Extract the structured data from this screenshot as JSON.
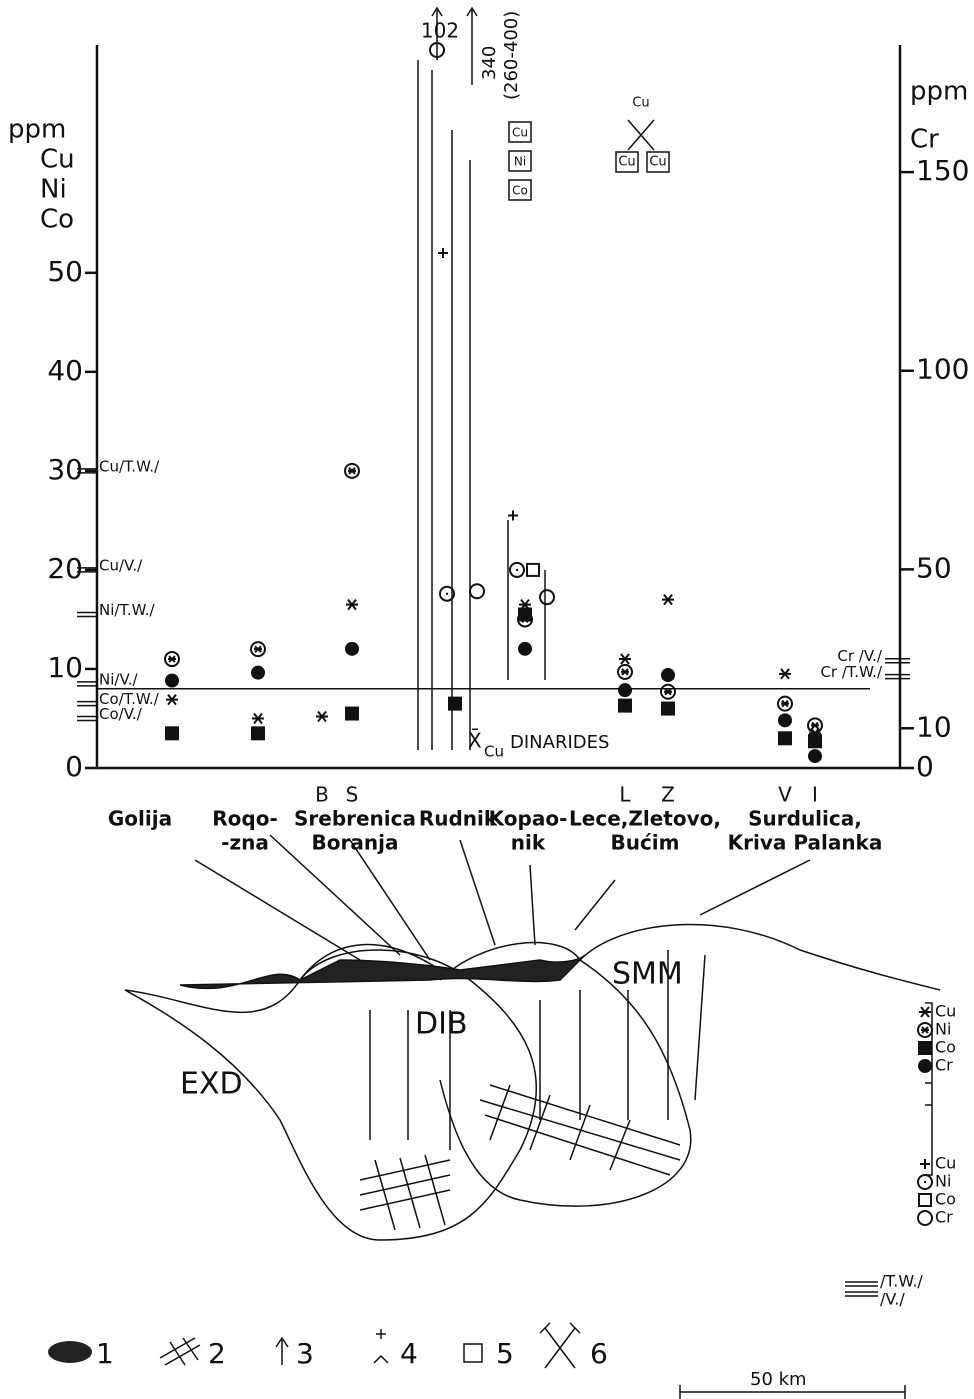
{
  "chart_data": {
    "type": "scatter",
    "y_axis_labels": [
      "ppm",
      "Cu",
      "Ni",
      "Co"
    ],
    "y2_axis_labels": [
      "ppm",
      "Cr"
    ],
    "categories": [
      null,
      null,
      "B",
      "S",
      null,
      null,
      "L",
      "Z",
      "V",
      "I"
    ],
    "localities": [
      [
        "Golija"
      ],
      [
        "Roqo-",
        "-zna"
      ],
      [
        "Srebrenica",
        "Boranja"
      ],
      [
        "Rudnik"
      ],
      [
        "Kopao-",
        "nik"
      ],
      [
        "Lece,Zletovo,",
        "Bućim"
      ],
      [
        "Surdulica,",
        "Kriva Palanka"
      ]
    ],
    "series": [
      {
        "name": "Cu",
        "marker": "asterisk",
        "color": "#111",
        "values": [
          6.9,
          5,
          5.2,
          16.5,
          null,
          16.5,
          11,
          17,
          9.5,
          3.5
        ]
      },
      {
        "name": "Ni",
        "marker": "circled-asterisk",
        "color": "#111",
        "values": [
          11,
          12,
          null,
          30,
          null,
          15,
          9.7,
          7.7,
          6.5,
          4.3
        ]
      },
      {
        "name": "Co",
        "marker": "filled-square",
        "color": "#111",
        "values": [
          3.5,
          3.5,
          null,
          5.5,
          6.5,
          15.5,
          6.3,
          6,
          3,
          2.7
        ]
      },
      {
        "name": "Cr",
        "marker": "filled-circle",
        "color": "#111",
        "axis": "y2",
        "values": [
          22,
          24,
          null,
          30,
          null,
          30,
          19.6,
          23.4,
          12,
          3
        ]
      },
      {
        "name": "Cu",
        "marker": "plus",
        "color": "#111",
        "values": [
          null,
          null,
          null,
          null,
          52,
          25.5,
          null,
          null,
          null,
          null
        ]
      },
      {
        "name": "Ni",
        "marker": "dotted-circle",
        "color": "#111",
        "values": [
          null,
          null,
          null,
          null,
          17.6,
          20,
          null,
          null,
          null,
          null
        ]
      },
      {
        "name": "Co",
        "marker": "open-square",
        "color": "#111",
        "values": [
          null,
          null,
          null,
          null,
          null,
          20,
          null,
          null,
          null,
          null
        ]
      },
      {
        "name": "Cr",
        "marker": "open-circle",
        "color": "#111",
        "axis": "y2",
        "values": [
          null,
          null,
          null,
          null,
          44.5,
          43,
          null,
          null,
          null,
          null
        ]
      }
    ],
    "ylim": [
      0,
      73
    ],
    "yticks": [
      0,
      10,
      20,
      30,
      40,
      50
    ],
    "y2lim": [
      0,
      182
    ],
    "y2ticks": [
      0,
      10,
      50,
      100,
      150
    ],
    "mean_line": {
      "value": 8,
      "symbol": "X̄",
      "subscript": "Cu",
      "label": "DINARIDES"
    },
    "reference_lines": [
      {
        "label": "Cu/T.W./",
        "value": 30
      },
      {
        "label": "Cu/V./",
        "value": 20
      },
      {
        "label": "Ni/T.W./",
        "value": 15.5
      },
      {
        "label": "Ni/V./",
        "value": 8.5
      },
      {
        "label": "Co/T.W./",
        "value": 6.5
      },
      {
        "label": "Co/V./",
        "value": 5
      },
      {
        "label": "Cr /V./",
        "value": 27,
        "axis": "y2"
      },
      {
        "label": "Cr /T.W./",
        "value": 23,
        "axis": "y2"
      }
    ],
    "off_scale": [
      "102",
      "340",
      "(260-400)"
    ],
    "box_labels": [
      "Cu",
      "Ni",
      "Co"
    ],
    "hammer_labels": [
      "Cu",
      "Cu",
      "Cu"
    ]
  },
  "diagram": {
    "units": [
      "EXD",
      "DIB",
      "SMM"
    ],
    "key": [
      "1",
      "2",
      "3",
      "4",
      "5",
      "6"
    ],
    "line_key": [
      "/T.W./",
      "/V./"
    ],
    "scale": "50 km"
  }
}
